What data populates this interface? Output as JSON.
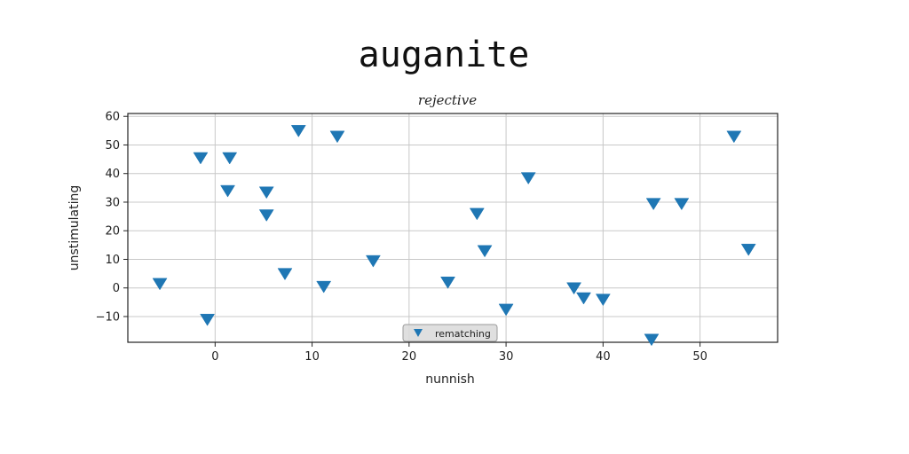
{
  "chart_data": {
    "type": "scatter",
    "title": "auganite",
    "subtitle": "rejective",
    "xlabel": "nunnish",
    "ylabel": "unstimulating",
    "xlim": [
      -9,
      58
    ],
    "ylim": [
      -19,
      61
    ],
    "xticks": [
      0,
      10,
      20,
      30,
      40,
      50
    ],
    "yticks": [
      -10,
      0,
      10,
      20,
      30,
      40,
      50,
      60
    ],
    "grid": true,
    "legend_position": "bottom-center",
    "series": [
      {
        "name": "rematching",
        "marker": "triangle-down",
        "color": "#1f77b4",
        "points": [
          {
            "x": -5.7,
            "y": 1.5
          },
          {
            "x": -1.5,
            "y": 45.5
          },
          {
            "x": -0.8,
            "y": -11.0
          },
          {
            "x": 1.3,
            "y": 34.0
          },
          {
            "x": 1.5,
            "y": 45.5
          },
          {
            "x": 5.3,
            "y": 33.5
          },
          {
            "x": 5.3,
            "y": 25.5
          },
          {
            "x": 7.2,
            "y": 5.0
          },
          {
            "x": 8.6,
            "y": 55.0
          },
          {
            "x": 11.2,
            "y": 0.5
          },
          {
            "x": 12.6,
            "y": 53.0
          },
          {
            "x": 16.3,
            "y": 9.5
          },
          {
            "x": 24.0,
            "y": 2.0
          },
          {
            "x": 27.0,
            "y": 26.0
          },
          {
            "x": 27.8,
            "y": 13.0
          },
          {
            "x": 30.0,
            "y": -7.5
          },
          {
            "x": 32.3,
            "y": 38.5
          },
          {
            "x": 37.0,
            "y": 0.0
          },
          {
            "x": 38.0,
            "y": -3.5
          },
          {
            "x": 40.0,
            "y": -4.0
          },
          {
            "x": 45.0,
            "y": -18.0
          },
          {
            "x": 45.2,
            "y": 29.5
          },
          {
            "x": 48.1,
            "y": 29.5
          },
          {
            "x": 53.5,
            "y": 53.0
          },
          {
            "x": 55.0,
            "y": 13.5
          }
        ]
      }
    ]
  }
}
